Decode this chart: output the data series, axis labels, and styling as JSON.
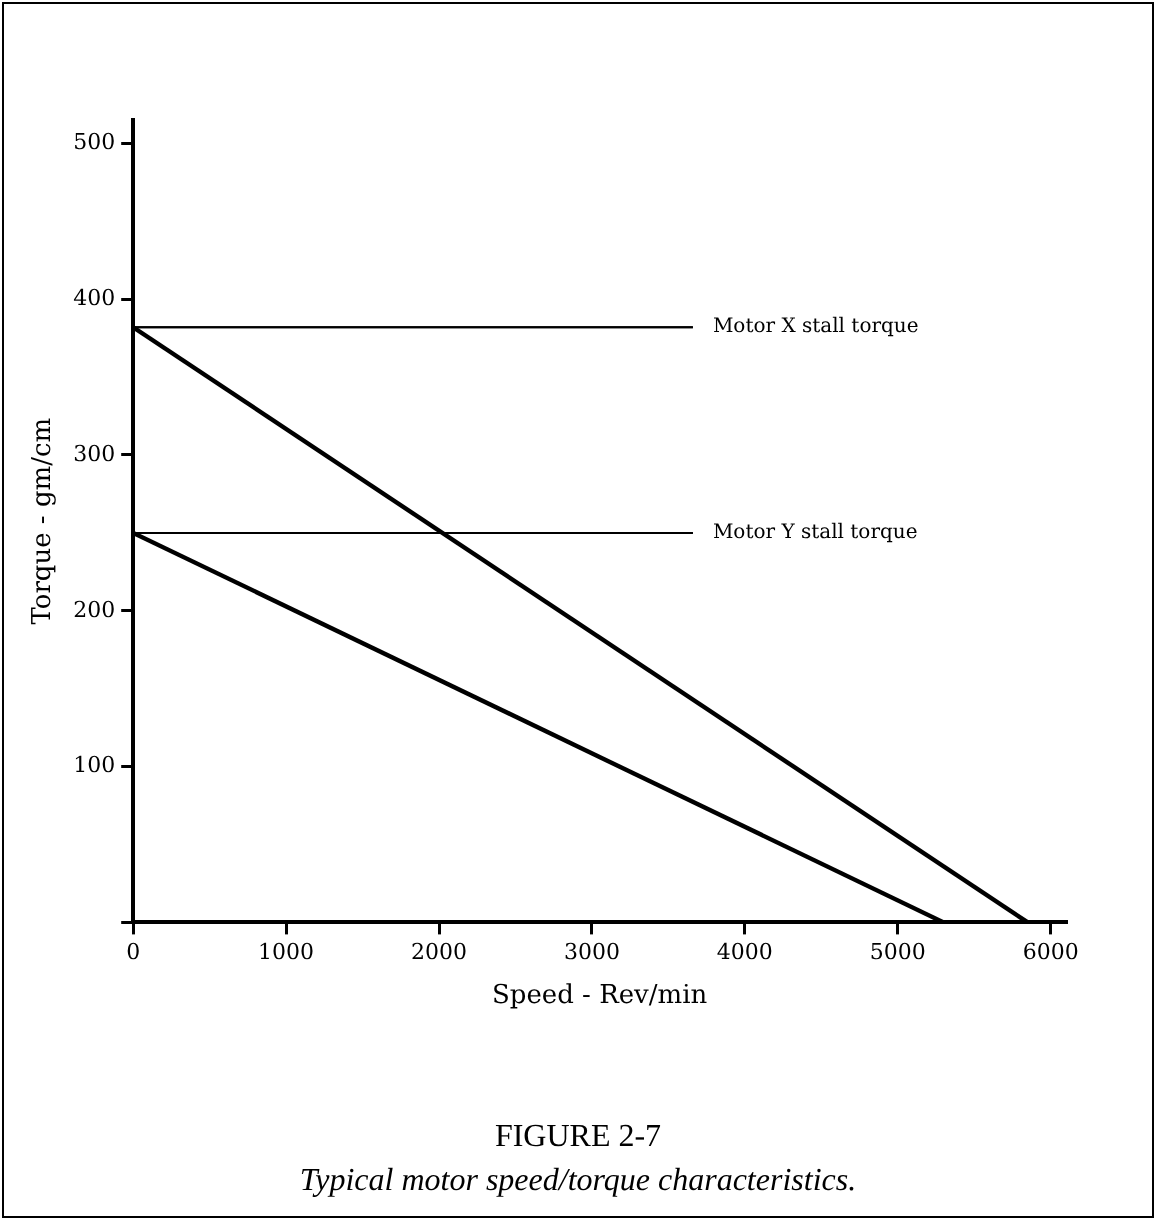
{
  "chart_data": {
    "type": "line",
    "title": "FIGURE 2-7",
    "subtitle": "Typical motor speed/torque characteristics.",
    "xlabel": "Speed - Rev/min",
    "ylabel": "Torque - gm/cm",
    "series": [
      {
        "color": "#000000",
        "x": [
          0,
          5850
        ],
        "values": [
          382,
          0
        ]
      },
      {
        "color": "#000000",
        "x": [
          0,
          5300
        ],
        "values": [
          250,
          0
        ]
      }
    ],
    "xlim": [
      0,
      6100
    ],
    "ylim": [
      0,
      515
    ],
    "xticks": [
      0,
      1000,
      2000,
      3000,
      4000,
      5000,
      6000
    ],
    "yticks": [
      {
        "value": 0,
        "label": null
      },
      100,
      200,
      300,
      400,
      500
    ],
    "ref_lines": [
      {
        "axis": "y",
        "value": 382,
        "label": "Motor X stall torque",
        "color": "#000000"
      },
      {
        "axis": "y",
        "value": 250,
        "label": "Motor Y stall torque",
        "color": "#000000"
      }
    ],
    "grid": false,
    "legend": false,
    "marker": "none",
    "line_style": "solid"
  }
}
